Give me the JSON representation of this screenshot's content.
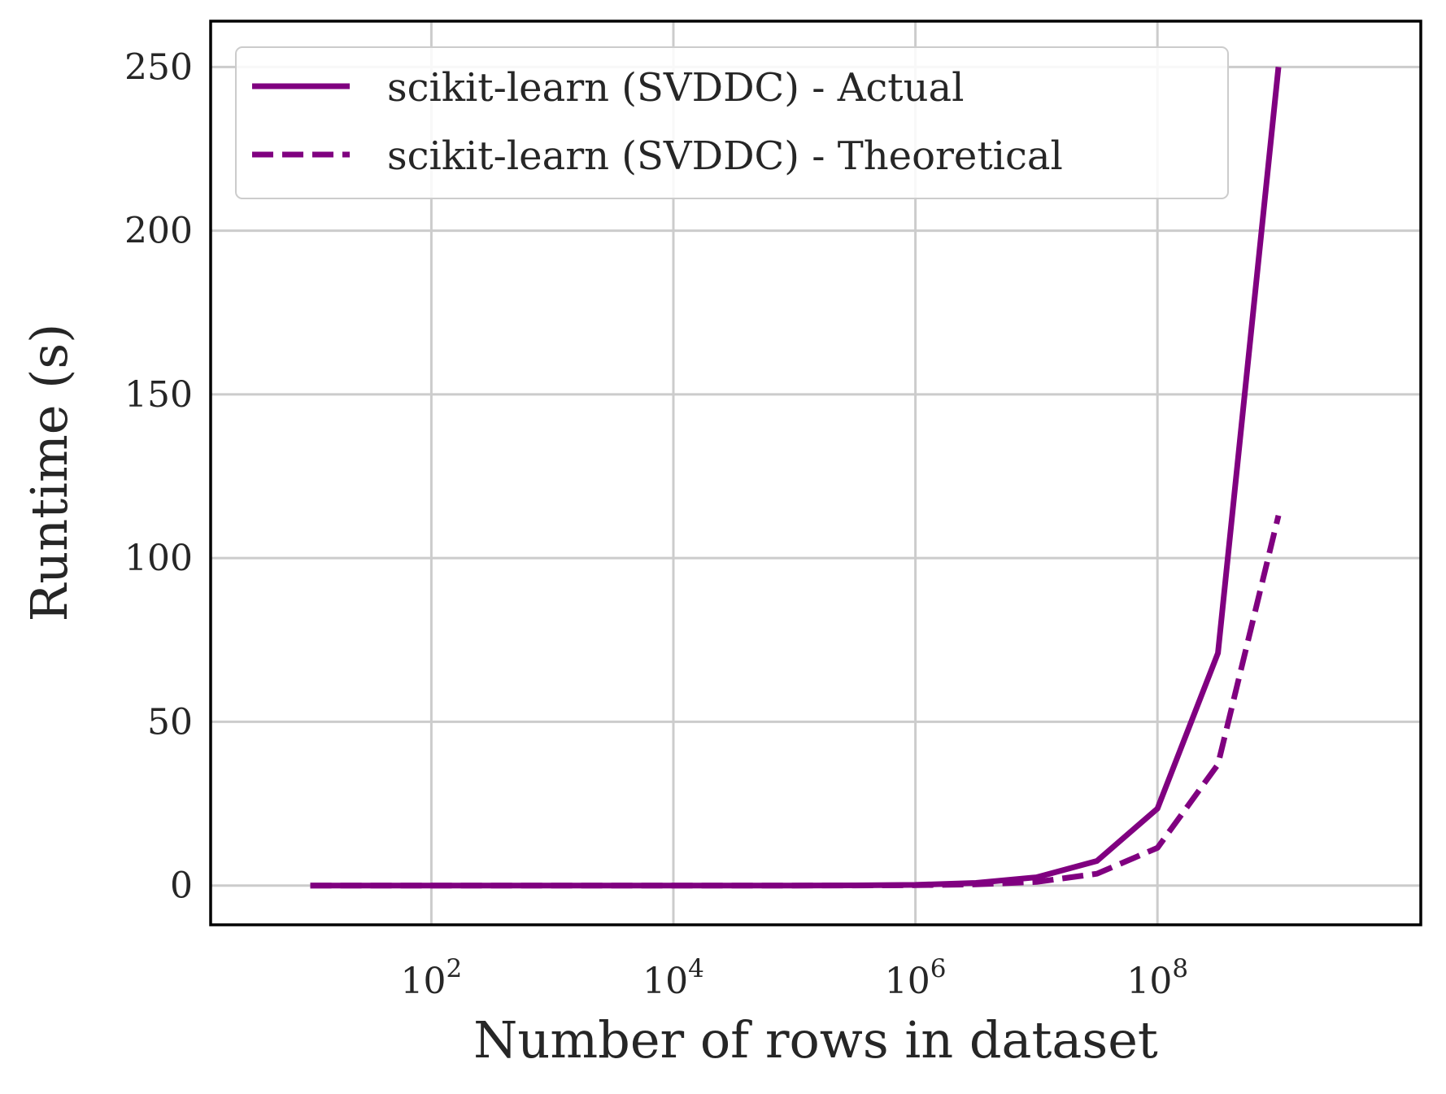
{
  "chart_data": {
    "type": "line",
    "xlabel": "Number of rows in dataset",
    "ylabel": "Runtime (s)",
    "xscale": "log",
    "xlim": [
      1.5,
      15000000000.0
    ],
    "ylim": [
      -12,
      264
    ],
    "grid": true,
    "legend_position": "upper-left",
    "xticks": [
      {
        "value": 100,
        "base": "10",
        "exp": "2"
      },
      {
        "value": 10000,
        "base": "10",
        "exp": "4"
      },
      {
        "value": 1000000,
        "base": "10",
        "exp": "6"
      },
      {
        "value": 100000000,
        "base": "10",
        "exp": "8"
      }
    ],
    "yticks": [
      0,
      50,
      100,
      150,
      200,
      250
    ],
    "x": [
      10,
      31.6,
      100,
      316,
      1000,
      3162,
      10000,
      31623,
      100000,
      316228,
      1000000,
      3162278,
      10000000,
      31622777,
      100000000,
      316227766,
      1000000000
    ],
    "series": [
      {
        "name": "scikit-learn (SVDDC) - Actual",
        "style": "solid",
        "color": "#800080",
        "values": [
          0,
          0,
          0,
          0,
          0,
          0,
          0,
          0,
          0,
          0.05,
          0.2,
          0.8,
          2.5,
          7.5,
          23.5,
          71,
          250
        ]
      },
      {
        "name": "scikit-learn (SVDDC) - Theoretical",
        "style": "dashed",
        "color": "#800080",
        "values": [
          0,
          0,
          0,
          0,
          0,
          0,
          0,
          0,
          0,
          0.03,
          0.1,
          0.35,
          1.1,
          3.6,
          11.5,
          37,
          113
        ]
      }
    ]
  }
}
